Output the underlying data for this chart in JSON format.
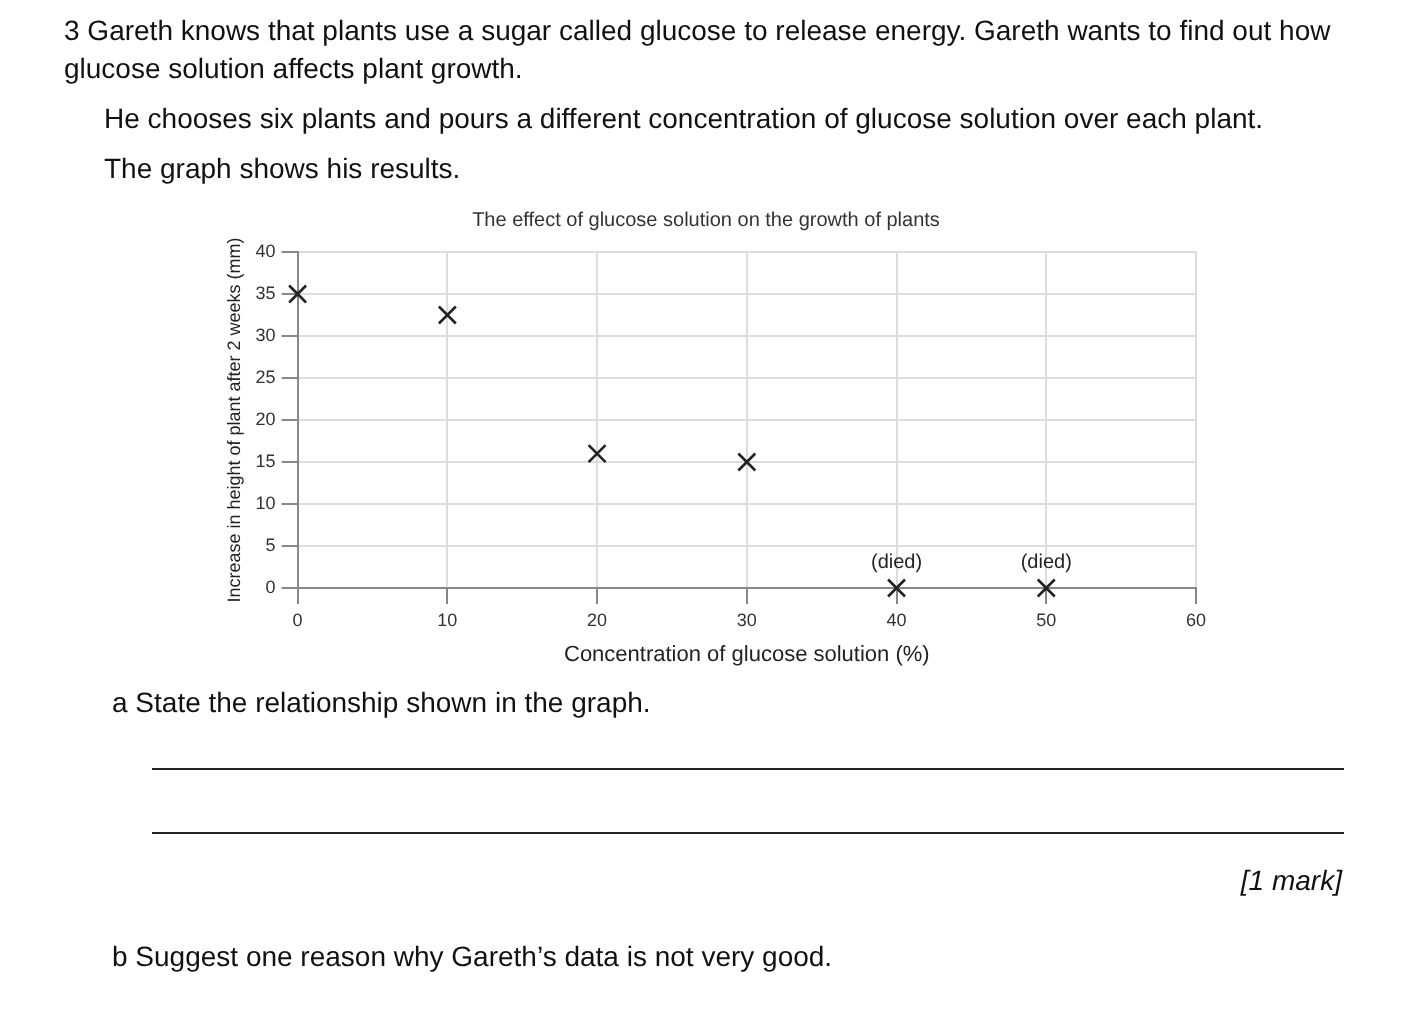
{
  "chart_data": {
    "type": "scatter",
    "title": "The effect of glucose solution on the growth of plants",
    "subtitle": "3 Gareth knows that plants use a sugar called glucose to release energy. Gareth wants to find out how glucose solution affects plant growth.\nHe chooses six plants and pours a different concentration of glucose solution over each plant.\nThe graph shows his results.",
    "xlabel": "Concentration of glucose solution (%)",
    "ylabel": "Increase in height of plant after 2 weeks (mm)",
    "x": [
      0,
      10,
      20,
      30,
      40,
      50
    ],
    "values": [
      35,
      32.5,
      16,
      15,
      0,
      0
    ],
    "color": "#222222",
    "xlim": [
      0,
      60
    ],
    "xticks": [
      0,
      10,
      20,
      30,
      40,
      50,
      60
    ],
    "ylim": [
      0,
      40
    ],
    "yticks": [
      0,
      5,
      10,
      15,
      20,
      25,
      30,
      35,
      40
    ],
    "grid": true,
    "marker": "cross",
    "annotations": [
      {
        "text": "(died)",
        "x": 40,
        "y": 0
      },
      {
        "text": "(died)",
        "x": 50,
        "y": 0
      },
      "a State the relationship shown in the graph.",
      "[1 mark]",
      "b Suggest one reason why Gareth’s data is not very good."
    ]
  }
}
